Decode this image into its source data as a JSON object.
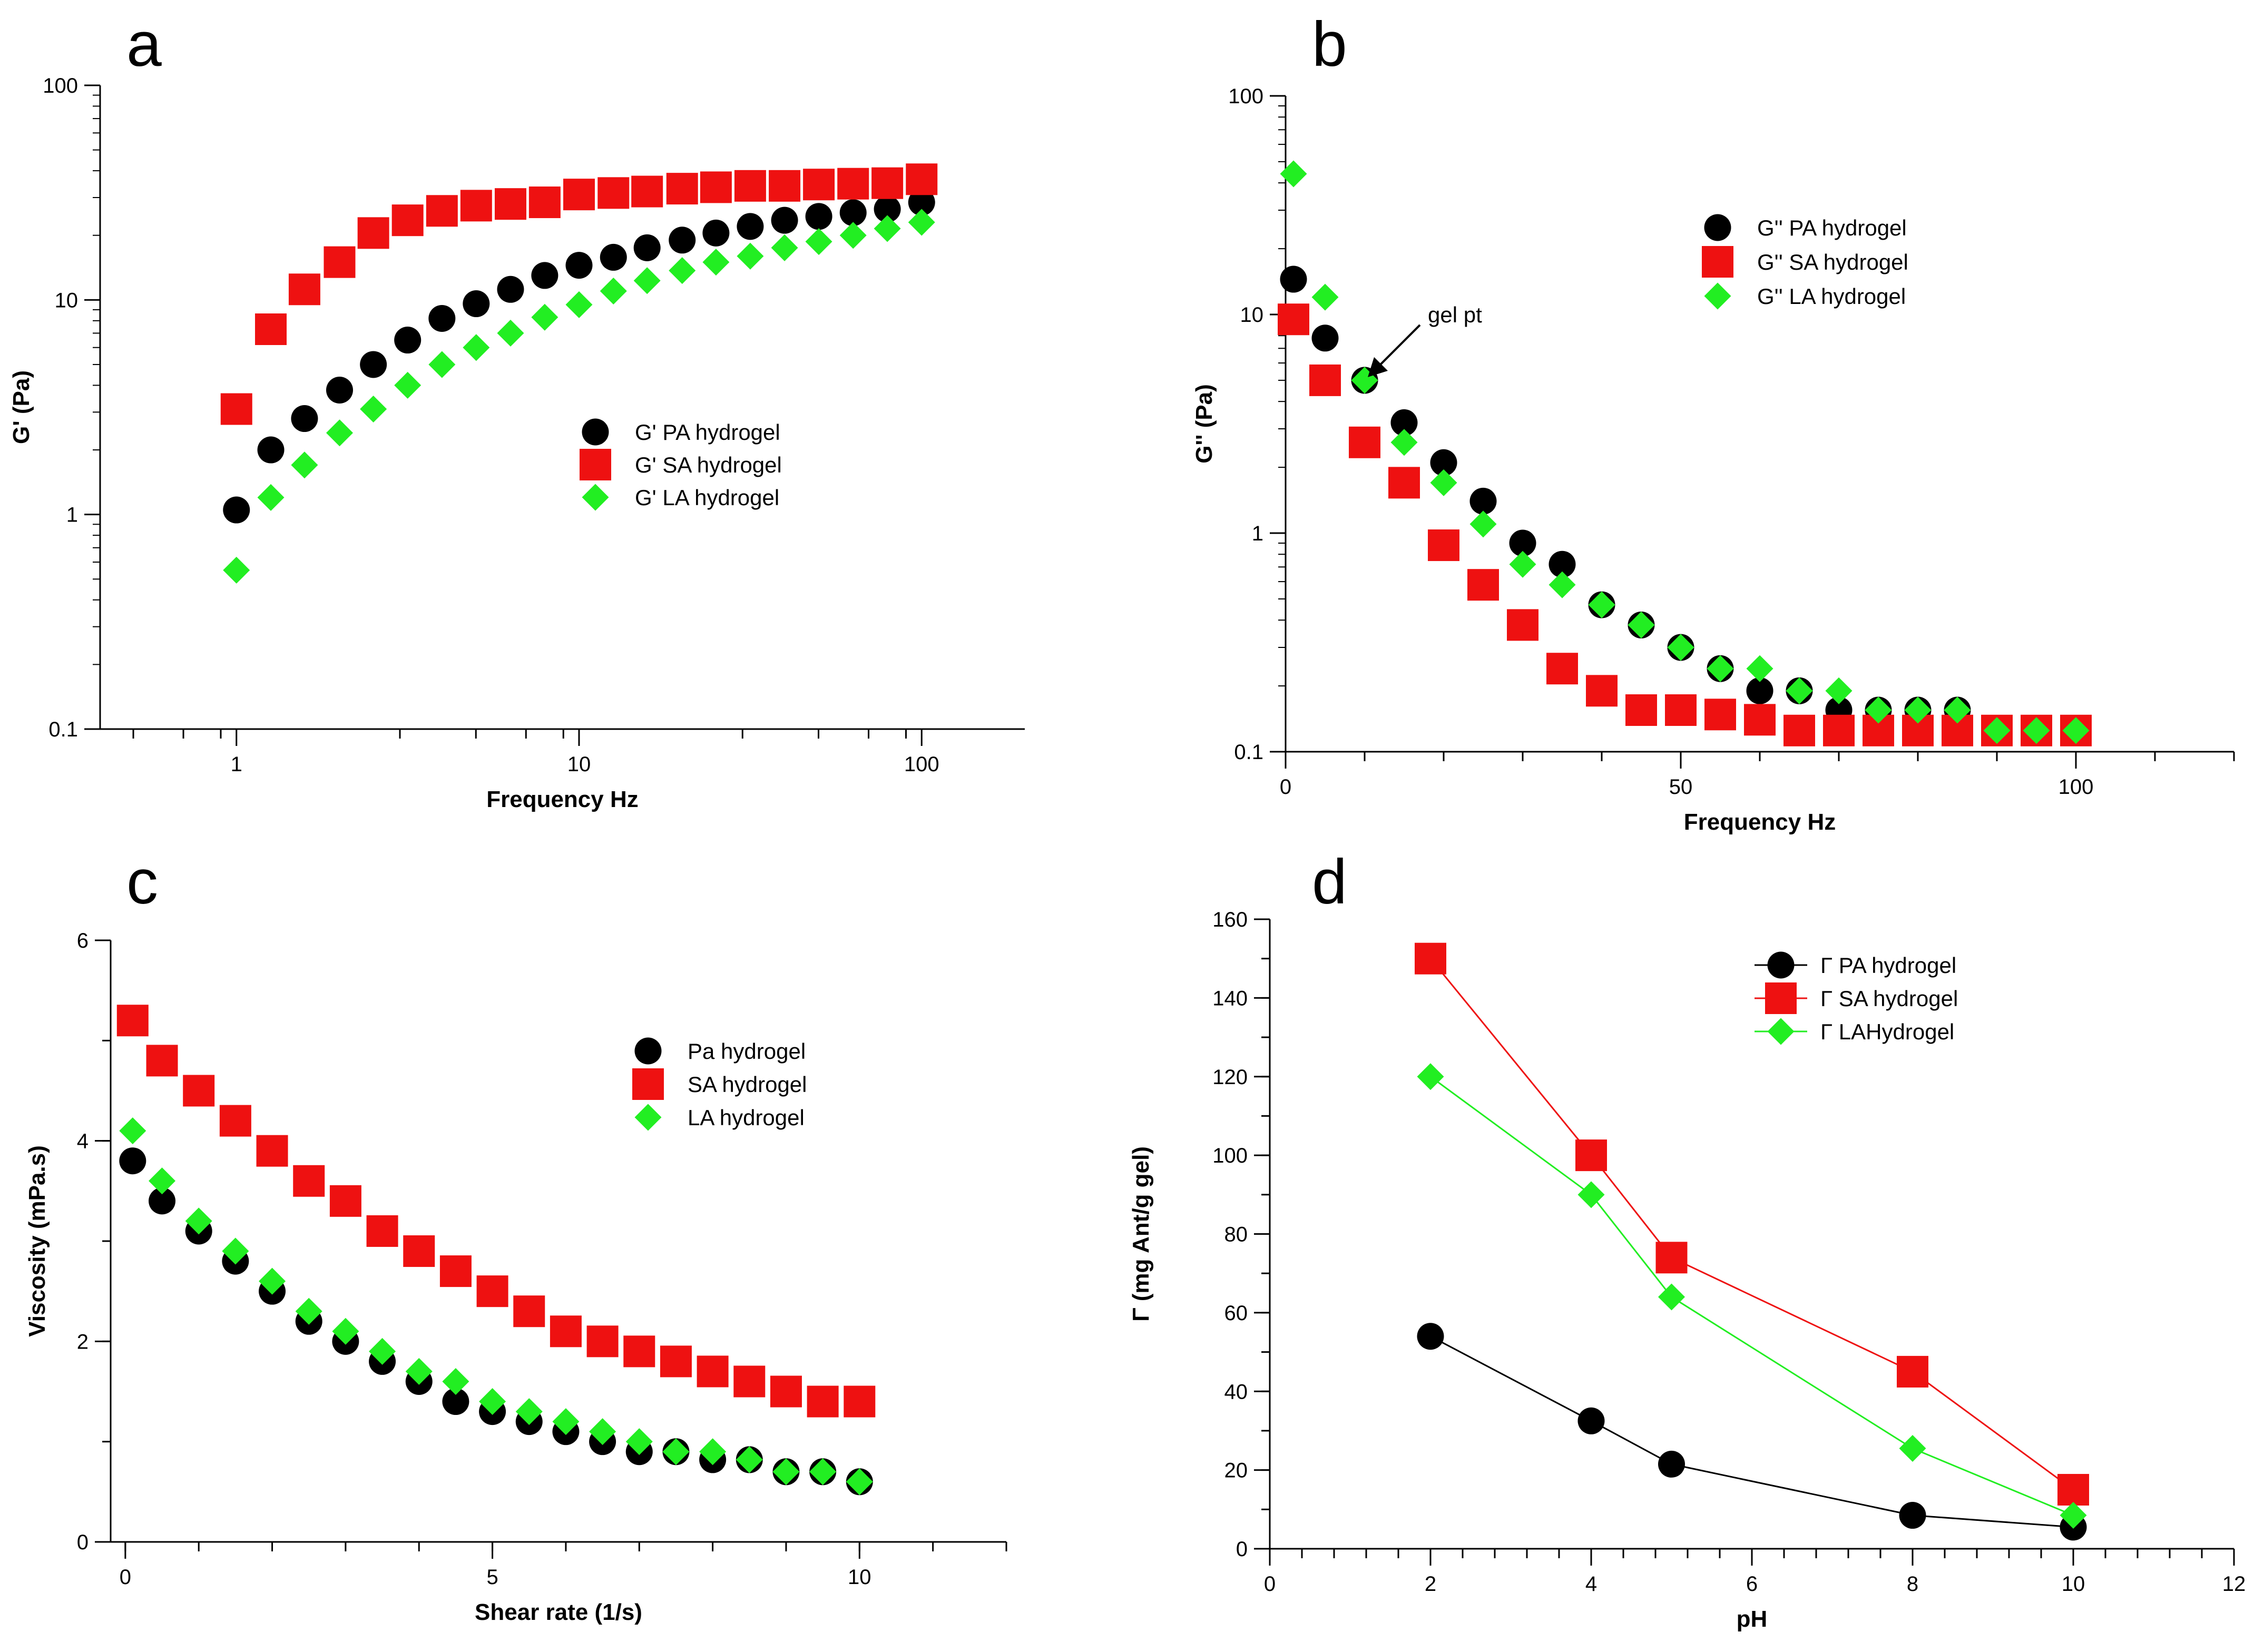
{
  "colors": {
    "PA": "#000000",
    "SA": "#ee1111",
    "LA": "#22ee22"
  },
  "chart_data": [
    {
      "panel": "a",
      "type": "scatter",
      "xscale": "log",
      "yscale": "log",
      "xlabel": "Frequency Hz",
      "ylabel": "G' (Pa)",
      "xlim": [
        0.4,
        200
      ],
      "ylim": [
        0.1,
        100
      ],
      "xticks": [
        {
          "v": 1,
          "label": "1"
        },
        {
          "v": 10,
          "label": "10"
        },
        {
          "v": 100,
          "label": "100"
        }
      ],
      "yticks": [
        {
          "v": 0.1,
          "label": "0.1"
        },
        {
          "v": 1,
          "label": "1"
        },
        {
          "v": 10,
          "label": "10"
        },
        {
          "v": 100,
          "label": "100"
        }
      ],
      "legend_position": "center-right",
      "series": [
        {
          "name": "G' PA hydrogel",
          "key": "PA",
          "marker": "circle",
          "x": [
            1.0,
            1.26,
            1.58,
            2.0,
            2.51,
            3.16,
            3.98,
            5.01,
            6.31,
            7.94,
            10,
            12.6,
            15.8,
            20,
            25.1,
            31.6,
            39.8,
            50.1,
            63.1,
            79.4,
            100
          ],
          "y": [
            1.05,
            2.0,
            2.8,
            3.8,
            5.0,
            6.5,
            8.2,
            9.6,
            11.2,
            13.0,
            14.5,
            15.8,
            17.5,
            19.0,
            20.5,
            22.0,
            23.5,
            24.5,
            25.5,
            26.5,
            28.5
          ]
        },
        {
          "name": "G' SA hydrogel",
          "key": "SA",
          "marker": "square",
          "x": [
            1.0,
            1.26,
            1.58,
            2.0,
            2.51,
            3.16,
            3.98,
            5.01,
            6.31,
            7.94,
            10,
            12.6,
            15.8,
            20,
            25.1,
            31.6,
            39.8,
            50.1,
            63.1,
            79.4,
            100
          ],
          "y": [
            3.1,
            7.3,
            11.2,
            15.0,
            20.5,
            23.5,
            26.0,
            27.5,
            28.0,
            28.5,
            31.0,
            31.5,
            32.0,
            33.0,
            33.5,
            34.0,
            34.0,
            34.5,
            34.8,
            35.0,
            36.5
          ]
        },
        {
          "name": "G' LA hydrogel",
          "key": "LA",
          "marker": "diamond",
          "x": [
            1.0,
            1.26,
            1.58,
            2.0,
            2.51,
            3.16,
            3.98,
            5.01,
            6.31,
            7.94,
            10,
            12.6,
            15.8,
            20,
            25.1,
            31.6,
            39.8,
            50.1,
            63.1,
            79.4,
            100
          ],
          "y": [
            0.55,
            1.2,
            1.7,
            2.4,
            3.1,
            4.0,
            5.0,
            6.0,
            7.0,
            8.3,
            9.5,
            11.0,
            12.3,
            13.7,
            15.0,
            16.0,
            17.5,
            18.7,
            20.0,
            21.5,
            23.0
          ]
        }
      ]
    },
    {
      "panel": "b",
      "type": "scatter",
      "xscale": "linear",
      "yscale": "log",
      "xlabel": "Frequency Hz",
      "ylabel": "G'' (Pa)",
      "xlim": [
        0,
        120
      ],
      "ylim": [
        0.1,
        100
      ],
      "xticks": [
        {
          "v": 0,
          "label": "0"
        },
        {
          "v": 50,
          "label": "50"
        },
        {
          "v": 100,
          "label": "100"
        }
      ],
      "yticks": [
        {
          "v": 0.1,
          "label": "0.1"
        },
        {
          "v": 1,
          "label": "1"
        },
        {
          "v": 10,
          "label": "10"
        },
        {
          "v": 100,
          "label": "100"
        }
      ],
      "legend_position": "top-right",
      "annotation": {
        "text": "gel pt",
        "x": 10,
        "y": 5
      },
      "series": [
        {
          "name": "G'' PA hydrogel",
          "key": "PA",
          "marker": "circle",
          "x": [
            1,
            5,
            10,
            15,
            20,
            25,
            30,
            35,
            40,
            45,
            50,
            55,
            60,
            65,
            70,
            75,
            80,
            85,
            90,
            95,
            100
          ],
          "y": [
            14.5,
            7.8,
            5.0,
            3.2,
            2.1,
            1.4,
            0.9,
            0.72,
            0.47,
            0.38,
            0.3,
            0.24,
            0.19,
            0.19,
            0.155,
            0.155,
            0.155,
            0.155,
            0.125,
            0.125,
            0.125
          ]
        },
        {
          "name": "G'' SA hydrogel",
          "key": "SA",
          "marker": "square",
          "x": [
            1,
            5,
            10,
            15,
            20,
            25,
            30,
            35,
            40,
            45,
            50,
            55,
            60,
            65,
            70,
            75,
            80,
            85,
            90,
            95,
            100
          ],
          "y": [
            9.5,
            5.0,
            2.6,
            1.7,
            0.88,
            0.58,
            0.38,
            0.24,
            0.19,
            0.155,
            0.155,
            0.148,
            0.14,
            0.125,
            0.125,
            0.125,
            0.125,
            0.125,
            0.125,
            0.125,
            0.125
          ]
        },
        {
          "name": "G'' LA hydrogel",
          "key": "LA",
          "marker": "diamond",
          "x": [
            1,
            5,
            10,
            15,
            20,
            25,
            30,
            35,
            40,
            45,
            50,
            55,
            60,
            65,
            70,
            75,
            80,
            85,
            90,
            95,
            100
          ],
          "y": [
            44.0,
            12.0,
            5.0,
            2.6,
            1.7,
            1.1,
            0.72,
            0.58,
            0.47,
            0.38,
            0.3,
            0.24,
            0.24,
            0.19,
            0.19,
            0.155,
            0.155,
            0.155,
            0.125,
            0.125,
            0.125
          ]
        }
      ]
    },
    {
      "panel": "c",
      "type": "scatter",
      "xscale": "linear",
      "yscale": "linear",
      "xlabel": "Shear rate (1/s)",
      "ylabel": "Viscosity (mPa.s)",
      "xlim": [
        -0.2,
        12
      ],
      "ylim": [
        0,
        6
      ],
      "xticks": [
        {
          "v": 0,
          "label": "0"
        },
        {
          "v": 5,
          "label": "5"
        },
        {
          "v": 10,
          "label": "10"
        }
      ],
      "yticks": [
        {
          "v": 0,
          "label": "0"
        },
        {
          "v": 2,
          "label": "2"
        },
        {
          "v": 4,
          "label": "4"
        },
        {
          "v": 6,
          "label": "6"
        }
      ],
      "legend_position": "top-right",
      "series": [
        {
          "name": "Pa hydrogel",
          "key": "PA",
          "marker": "circle",
          "x": [
            0.1,
            0.5,
            1.0,
            1.5,
            2.0,
            2.5,
            3.0,
            3.5,
            4.0,
            4.5,
            5.0,
            5.5,
            6.0,
            6.5,
            7.0,
            7.5,
            8.0,
            8.5,
            9.0,
            9.5,
            10.0
          ],
          "y": [
            3.8,
            3.4,
            3.1,
            2.8,
            2.5,
            2.2,
            2.0,
            1.8,
            1.6,
            1.4,
            1.3,
            1.2,
            1.1,
            1.0,
            0.9,
            0.9,
            0.82,
            0.82,
            0.7,
            0.7,
            0.6
          ]
        },
        {
          "name": "SA hydrogel",
          "key": "SA",
          "marker": "square",
          "x": [
            0.1,
            0.5,
            1.0,
            1.5,
            2.0,
            2.5,
            3.0,
            3.5,
            4.0,
            4.5,
            5.0,
            5.5,
            6.0,
            6.5,
            7.0,
            7.5,
            8.0,
            8.5,
            9.0,
            9.5,
            10.0
          ],
          "y": [
            5.2,
            4.8,
            4.5,
            4.2,
            3.9,
            3.6,
            3.4,
            3.1,
            2.9,
            2.7,
            2.5,
            2.3,
            2.1,
            2.0,
            1.9,
            1.8,
            1.7,
            1.6,
            1.5,
            1.4,
            1.4
          ]
        },
        {
          "name": "LA hydrogel",
          "key": "LA",
          "marker": "diamond",
          "x": [
            0.1,
            0.5,
            1.0,
            1.5,
            2.0,
            2.5,
            3.0,
            3.5,
            4.0,
            4.5,
            5.0,
            5.5,
            6.0,
            6.5,
            7.0,
            7.5,
            8.0,
            8.5,
            9.0,
            9.5,
            10.0
          ],
          "y": [
            4.1,
            3.6,
            3.2,
            2.9,
            2.6,
            2.3,
            2.1,
            1.9,
            1.7,
            1.6,
            1.4,
            1.3,
            1.2,
            1.1,
            1.0,
            0.9,
            0.9,
            0.82,
            0.7,
            0.7,
            0.6
          ]
        }
      ]
    },
    {
      "panel": "d",
      "type": "line",
      "xscale": "linear",
      "yscale": "linear",
      "xlabel": "pH",
      "ylabel": "Γ (mg Ant/g gel)",
      "xlim": [
        0,
        12
      ],
      "ylim": [
        0,
        160
      ],
      "xticks": [
        {
          "v": 0,
          "label": "0"
        },
        {
          "v": 2,
          "label": "2"
        },
        {
          "v": 4,
          "label": "4"
        },
        {
          "v": 6,
          "label": "6"
        },
        {
          "v": 8,
          "label": "8"
        },
        {
          "v": 10,
          "label": "10"
        },
        {
          "v": 12,
          "label": "12"
        }
      ],
      "yticks": [
        {
          "v": 0,
          "label": "0"
        },
        {
          "v": 20,
          "label": "20"
        },
        {
          "v": 40,
          "label": "40"
        },
        {
          "v": 60,
          "label": "60"
        },
        {
          "v": 80,
          "label": "80"
        },
        {
          "v": 100,
          "label": "100"
        },
        {
          "v": 120,
          "label": "120"
        },
        {
          "v": 140,
          "label": "140"
        },
        {
          "v": 160,
          "label": "160"
        }
      ],
      "legend_position": "top-right",
      "series": [
        {
          "name": "Γ PA hydrogel",
          "key": "PA",
          "marker": "circle",
          "x": [
            2,
            4,
            5,
            8,
            10
          ],
          "y": [
            54,
            32.5,
            21.5,
            8.5,
            5.5
          ]
        },
        {
          "name": "Γ SA hydrogel",
          "key": "SA",
          "marker": "square",
          "x": [
            2,
            4,
            5,
            8,
            10
          ],
          "y": [
            150,
            100,
            74,
            45,
            15
          ]
        },
        {
          "name": "Γ LAHydrogel",
          "key": "LA",
          "marker": "diamond",
          "x": [
            2,
            4,
            5,
            8,
            10
          ],
          "y": [
            120,
            90,
            64,
            25.5,
            8.5
          ]
        }
      ]
    }
  ]
}
